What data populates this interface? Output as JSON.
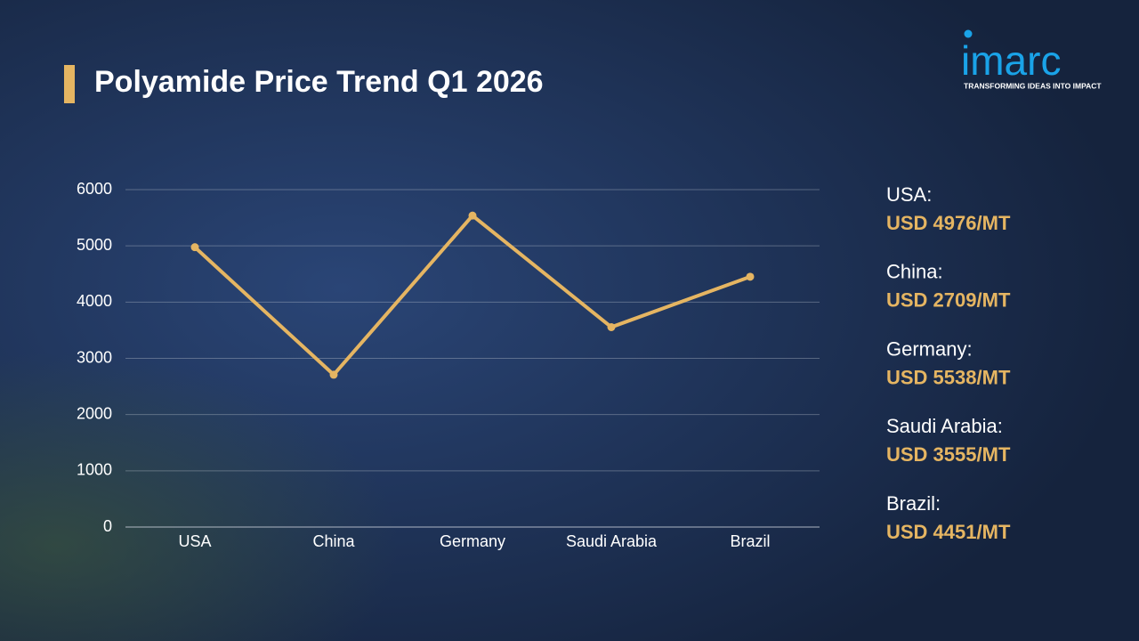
{
  "chart_data": {
    "type": "line",
    "title": "Polyamide Price Trend Q1 2026",
    "categories": [
      "USA",
      "China",
      "Germany",
      "Saudi Arabia",
      "Brazil"
    ],
    "values": [
      4976,
      2709,
      5538,
      3555,
      4451
    ],
    "value_labels": [
      "USD 4976/MT",
      "USD 2709/MT",
      "USD 5538/MT",
      "USD 3555/MT",
      "USD 4451/MT"
    ],
    "color": "#e5b562",
    "ylim": [
      0,
      6000
    ],
    "yticks": [
      0,
      1000,
      2000,
      3000,
      4000,
      5000,
      6000
    ],
    "grid": true
  },
  "side_panel": {
    "labels": [
      "USA:",
      "China:",
      "Germany:",
      "Saudi Arabia:",
      "Brazil:"
    ]
  },
  "logo": {
    "name": "imarc",
    "tagline": "TRANSFORMING IDEAS INTO IMPACT"
  }
}
